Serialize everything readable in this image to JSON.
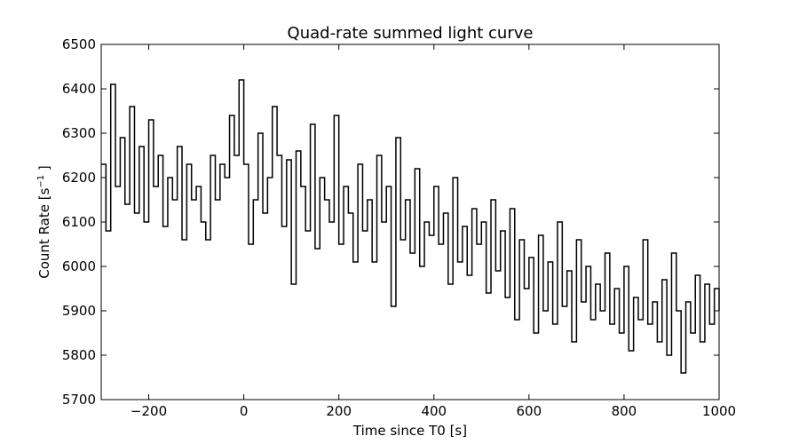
{
  "chart_data": {
    "type": "line",
    "title": "Quad-rate summed light curve",
    "xlabel": "Time since T0 [s]",
    "ylabel": "Count Rate [s",
    "ylabel_sup": "−1",
    "ylabel_close": " ]",
    "xlim": [
      -300,
      1000
    ],
    "ylim": [
      5700,
      6500
    ],
    "xticks": [
      -200,
      0,
      200,
      400,
      600,
      800,
      1000
    ],
    "xtick_labels": [
      "−200",
      "0",
      "200",
      "400",
      "600",
      "800",
      "1000"
    ],
    "yticks": [
      5700,
      5800,
      5900,
      6000,
      6100,
      6200,
      6300,
      6400,
      6500
    ],
    "ytick_labels": [
      "5700",
      "5800",
      "5900",
      "6000",
      "6100",
      "6200",
      "6300",
      "6400",
      "6500"
    ],
    "grid": false,
    "line_color": "#000000",
    "series": [
      {
        "style": "steps",
        "x": [
          -300,
          -290,
          -280,
          -270,
          -260,
          -250,
          -240,
          -230,
          -220,
          -210,
          -200,
          -190,
          -180,
          -170,
          -160,
          -150,
          -140,
          -130,
          -120,
          -110,
          -100,
          -90,
          -80,
          -70,
          -60,
          -50,
          -40,
          -30,
          -20,
          -10,
          0,
          10,
          20,
          30,
          40,
          50,
          60,
          70,
          80,
          90,
          100,
          110,
          120,
          130,
          140,
          150,
          160,
          170,
          180,
          190,
          200,
          210,
          220,
          230,
          240,
          250,
          260,
          270,
          280,
          290,
          300,
          310,
          320,
          330,
          340,
          350,
          360,
          370,
          380,
          390,
          400,
          410,
          420,
          430,
          440,
          450,
          460,
          470,
          480,
          490,
          500,
          510,
          520,
          530,
          540,
          550,
          560,
          570,
          580,
          590,
          600,
          610,
          620,
          630,
          640,
          650,
          660,
          670,
          680,
          690,
          700,
          710,
          720,
          730,
          740,
          750,
          760,
          770,
          780,
          790,
          800,
          810,
          820,
          830,
          840,
          850,
          860,
          870,
          880,
          890,
          900,
          910,
          920,
          930,
          940,
          950,
          960,
          970,
          980,
          990,
          1000
        ],
        "y": [
          6230,
          6080,
          6410,
          6180,
          6290,
          6140,
          6360,
          6120,
          6270,
          6100,
          6330,
          6180,
          6250,
          6090,
          6200,
          6150,
          6270,
          6060,
          6230,
          6150,
          6180,
          6100,
          6060,
          6250,
          6150,
          6230,
          6200,
          6340,
          6250,
          6420,
          6230,
          6050,
          6150,
          6300,
          6120,
          6200,
          6360,
          6250,
          6090,
          6240,
          5960,
          6260,
          6180,
          6080,
          6320,
          6040,
          6200,
          6150,
          6100,
          6340,
          6050,
          6180,
          6120,
          6010,
          6230,
          6080,
          6150,
          6010,
          6250,
          6100,
          6180,
          5910,
          6290,
          6060,
          6150,
          6030,
          6220,
          6000,
          6100,
          6070,
          6180,
          6050,
          6120,
          5960,
          6200,
          6010,
          6090,
          5980,
          6130,
          6050,
          6100,
          5940,
          6150,
          5990,
          6080,
          5930,
          6130,
          5880,
          6060,
          5950,
          6020,
          5850,
          6070,
          5900,
          6010,
          5870,
          6100,
          5910,
          5990,
          5830,
          6060,
          5920,
          6000,
          5880,
          5960,
          5900,
          6030,
          5870,
          5950,
          5850,
          6000,
          5810,
          5930,
          5880,
          6060,
          5870,
          5920,
          5830,
          5970,
          5800,
          6030,
          5900,
          5760,
          5920,
          5850,
          5980,
          5830,
          5960,
          5870,
          5950,
          5900
        ]
      }
    ]
  }
}
